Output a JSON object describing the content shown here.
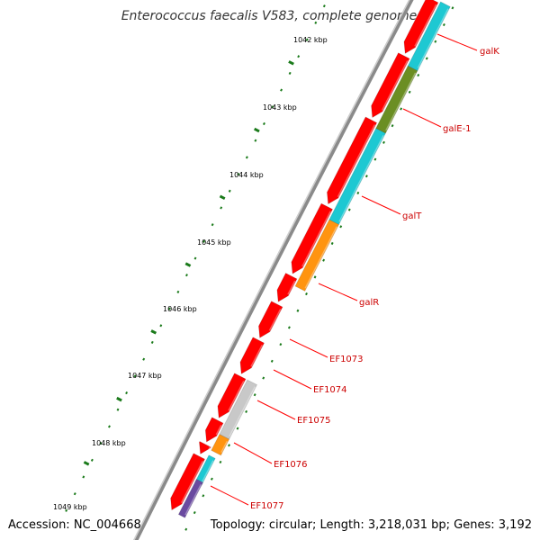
{
  "title": "Enterococcus faecalis V583, complete genome",
  "footer": {
    "accession": "Accession: NC_004668",
    "summary": "Topology: circular; Length: 3,218,031 bp; Genes: 3,192"
  },
  "ticks": [
    "1042 kbp",
    "1043 kbp",
    "1044 kbp",
    "1045 kbp",
    "1046 kbp",
    "1047 kbp",
    "1048 kbp",
    "1049 kbp"
  ],
  "gene_labels": [
    "galK",
    "galE-1",
    "galT",
    "galR",
    "EF1073",
    "EF1074",
    "EF1075",
    "EF1076",
    "EF1077"
  ],
  "colors": {
    "cds": "#ff0000",
    "label": "#cc0000",
    "tick": "#1a7a1a",
    "backbone": "#8a8a8a",
    "galK": "#1ec8d2",
    "galE": "#6b8e23",
    "galT": "#1ec8d2",
    "galR": "#ff9410",
    "grey_feature": "#c8c8c8",
    "orange_small": "#ff9410"
  }
}
